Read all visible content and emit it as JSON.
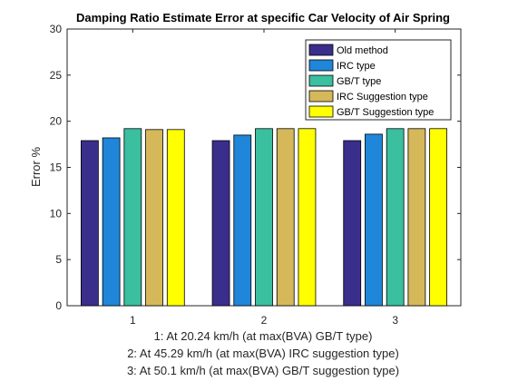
{
  "chart_data": {
    "type": "bar",
    "title": "Damping Ratio Estimate Error at specific Car Velocity of Air Spring",
    "ylabel": "Error %",
    "xlabel_lines": [
      "1: At 20.24 km/h (at max(BVA) GB/T type)",
      "2: At 45.29 km/h (at max(BVA) IRC suggestion type)",
      "3: At 50.1 km/h (at max(BVA) GB/T suggestion type)"
    ],
    "categories": [
      "1",
      "2",
      "3"
    ],
    "ylim": [
      0,
      30
    ],
    "yticks": [
      0,
      5,
      10,
      15,
      20,
      25,
      30
    ],
    "grid": false,
    "legend_position": "top-right",
    "series": [
      {
        "name": "Old method",
        "color": "#3a2e8c",
        "values": [
          17.9,
          17.9,
          17.9
        ]
      },
      {
        "name": "IRC type",
        "color": "#1f86d9",
        "values": [
          18.2,
          18.5,
          18.6
        ]
      },
      {
        "name": "GB/T type",
        "color": "#3abf9f",
        "values": [
          19.2,
          19.2,
          19.2
        ]
      },
      {
        "name": "IRC Suggestion type",
        "color": "#d4b85a",
        "values": [
          19.1,
          19.2,
          19.2
        ]
      },
      {
        "name": "GB/T Suggestion type",
        "color": "#ffff00",
        "values": [
          19.1,
          19.2,
          19.2
        ]
      }
    ]
  }
}
